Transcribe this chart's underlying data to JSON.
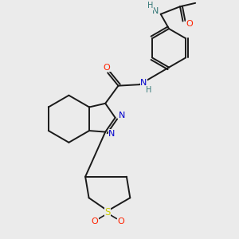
{
  "background_color": "#ebebeb",
  "figsize": [
    3.0,
    3.0
  ],
  "dpi": 100,
  "bond_color": "#1a1a1a",
  "bond_width": 1.4,
  "colors": {
    "N": "#0000cc",
    "O": "#ff2200",
    "S": "#cccc00",
    "NH": "#337777"
  }
}
